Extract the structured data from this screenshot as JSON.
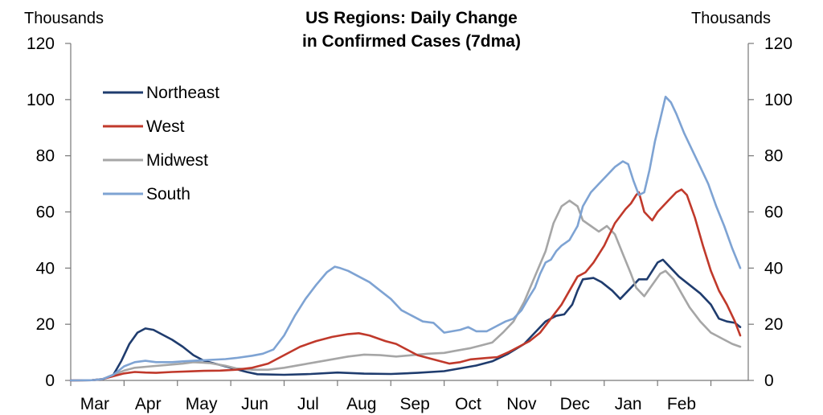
{
  "title_line1": "US Regions: Daily Change",
  "title_line2": "in Confirmed Cases (7dma)",
  "left_unit": "Thousands",
  "right_unit": "Thousands",
  "chart_data": {
    "type": "line",
    "title": "US Regions: Daily Change in Confirmed Cases (7dma)",
    "ylabel": "Thousands",
    "y2label": "Thousands",
    "ylim": [
      0,
      120
    ],
    "yticks": [
      0,
      20,
      40,
      60,
      80,
      100,
      120
    ],
    "xlim": [
      0,
      12.7
    ],
    "months": [
      "Mar",
      "Apr",
      "May",
      "Jun",
      "Jul",
      "Aug",
      "Sep",
      "Oct",
      "Nov",
      "Dec",
      "Jan",
      "Feb"
    ],
    "x_unit": "months since start of Mar 2020",
    "grid": false,
    "legend": "top-left",
    "series": [
      {
        "name": "Northeast",
        "color": "#1f3c6e",
        "points": [
          [
            0,
            0
          ],
          [
            0.4,
            0.1
          ],
          [
            0.6,
            0.4
          ],
          [
            0.8,
            2
          ],
          [
            0.95,
            7
          ],
          [
            1.1,
            13
          ],
          [
            1.25,
            17
          ],
          [
            1.4,
            18.5
          ],
          [
            1.55,
            18
          ],
          [
            1.7,
            16.5
          ],
          [
            1.9,
            14.5
          ],
          [
            2.1,
            12
          ],
          [
            2.3,
            9
          ],
          [
            2.5,
            7
          ],
          [
            2.7,
            6
          ],
          [
            2.9,
            5
          ],
          [
            3.1,
            4
          ],
          [
            3.3,
            3
          ],
          [
            3.5,
            2.2
          ],
          [
            4.0,
            2.0
          ],
          [
            4.5,
            2.3
          ],
          [
            5.0,
            2.8
          ],
          [
            5.5,
            2.4
          ],
          [
            6.0,
            2.3
          ],
          [
            6.5,
            2.7
          ],
          [
            7.0,
            3.3
          ],
          [
            7.3,
            4.3
          ],
          [
            7.6,
            5.3
          ],
          [
            7.9,
            6.8
          ],
          [
            8.2,
            9.5
          ],
          [
            8.5,
            13
          ],
          [
            8.7,
            17
          ],
          [
            8.9,
            21
          ],
          [
            9.1,
            23
          ],
          [
            9.25,
            23.5
          ],
          [
            9.4,
            27
          ],
          [
            9.5,
            32
          ],
          [
            9.6,
            36
          ],
          [
            9.8,
            36.5
          ],
          [
            9.95,
            35
          ],
          [
            10.15,
            32
          ],
          [
            10.3,
            29
          ],
          [
            10.5,
            33
          ],
          [
            10.65,
            36
          ],
          [
            10.8,
            36
          ],
          [
            11.0,
            42
          ],
          [
            11.1,
            43
          ],
          [
            11.2,
            41
          ],
          [
            11.4,
            37
          ],
          [
            11.6,
            34
          ],
          [
            11.8,
            31
          ],
          [
            12.0,
            27
          ],
          [
            12.15,
            22
          ],
          [
            12.3,
            21
          ],
          [
            12.45,
            20.5
          ],
          [
            12.55,
            19
          ]
        ]
      },
      {
        "name": "West",
        "color": "#c0392b",
        "points": [
          [
            0,
            0
          ],
          [
            0.4,
            0.1
          ],
          [
            0.6,
            0.5
          ],
          [
            0.8,
            1.5
          ],
          [
            1.0,
            2.5
          ],
          [
            1.2,
            3
          ],
          [
            1.4,
            2.8
          ],
          [
            1.6,
            2.7
          ],
          [
            1.9,
            3
          ],
          [
            2.2,
            3.2
          ],
          [
            2.5,
            3.4
          ],
          [
            2.8,
            3.5
          ],
          [
            3.1,
            3.8
          ],
          [
            3.4,
            4.5
          ],
          [
            3.7,
            6
          ],
          [
            4.0,
            9
          ],
          [
            4.3,
            12
          ],
          [
            4.6,
            14
          ],
          [
            4.9,
            15.5
          ],
          [
            5.2,
            16.5
          ],
          [
            5.4,
            16.8
          ],
          [
            5.6,
            16
          ],
          [
            5.9,
            14
          ],
          [
            6.1,
            13
          ],
          [
            6.3,
            11
          ],
          [
            6.5,
            9
          ],
          [
            6.7,
            8
          ],
          [
            6.9,
            7
          ],
          [
            7.1,
            6
          ],
          [
            7.3,
            6.5
          ],
          [
            7.5,
            7.5
          ],
          [
            7.8,
            8
          ],
          [
            8.0,
            8.3
          ],
          [
            8.2,
            10
          ],
          [
            8.4,
            12
          ],
          [
            8.6,
            14
          ],
          [
            8.8,
            17
          ],
          [
            9.0,
            22
          ],
          [
            9.2,
            27
          ],
          [
            9.35,
            32
          ],
          [
            9.5,
            37
          ],
          [
            9.65,
            38.5
          ],
          [
            9.8,
            42
          ],
          [
            10.0,
            48
          ],
          [
            10.2,
            56
          ],
          [
            10.4,
            61
          ],
          [
            10.5,
            63
          ],
          [
            10.6,
            66
          ],
          [
            10.65,
            67
          ],
          [
            10.75,
            60
          ],
          [
            10.9,
            57
          ],
          [
            11.0,
            60
          ],
          [
            11.1,
            62
          ],
          [
            11.2,
            64
          ],
          [
            11.35,
            67
          ],
          [
            11.45,
            68
          ],
          [
            11.55,
            66
          ],
          [
            11.7,
            58
          ],
          [
            11.85,
            48
          ],
          [
            12.0,
            39
          ],
          [
            12.15,
            32
          ],
          [
            12.3,
            27
          ],
          [
            12.45,
            21
          ],
          [
            12.55,
            16
          ]
        ]
      },
      {
        "name": "Midwest",
        "color": "#a6a6a6",
        "points": [
          [
            0,
            0
          ],
          [
            0.4,
            0.1
          ],
          [
            0.6,
            0.5
          ],
          [
            0.8,
            2
          ],
          [
            1.0,
            3.5
          ],
          [
            1.2,
            4.5
          ],
          [
            1.5,
            5
          ],
          [
            1.8,
            5.5
          ],
          [
            2.1,
            6
          ],
          [
            2.3,
            6.5
          ],
          [
            2.6,
            6.2
          ],
          [
            2.9,
            5.2
          ],
          [
            3.1,
            4.3
          ],
          [
            3.4,
            3.8
          ],
          [
            3.7,
            3.8
          ],
          [
            4.0,
            4.5
          ],
          [
            4.3,
            5.5
          ],
          [
            4.6,
            6.5
          ],
          [
            4.9,
            7.5
          ],
          [
            5.2,
            8.5
          ],
          [
            5.5,
            9.2
          ],
          [
            5.8,
            9.0
          ],
          [
            6.1,
            8.5
          ],
          [
            6.4,
            9
          ],
          [
            6.7,
            9.5
          ],
          [
            7.0,
            9.8
          ],
          [
            7.2,
            10.5
          ],
          [
            7.5,
            11.5
          ],
          [
            7.7,
            12.5
          ],
          [
            7.9,
            13.5
          ],
          [
            8.1,
            17
          ],
          [
            8.3,
            21
          ],
          [
            8.5,
            28
          ],
          [
            8.7,
            37
          ],
          [
            8.9,
            46
          ],
          [
            9.05,
            56
          ],
          [
            9.2,
            62
          ],
          [
            9.35,
            64
          ],
          [
            9.5,
            62
          ],
          [
            9.6,
            57
          ],
          [
            9.75,
            55
          ],
          [
            9.9,
            53
          ],
          [
            10.05,
            55
          ],
          [
            10.2,
            52
          ],
          [
            10.35,
            45
          ],
          [
            10.5,
            38
          ],
          [
            10.6,
            33
          ],
          [
            10.75,
            30
          ],
          [
            10.9,
            34
          ],
          [
            11.05,
            38
          ],
          [
            11.15,
            39
          ],
          [
            11.3,
            36
          ],
          [
            11.45,
            31
          ],
          [
            11.6,
            26
          ],
          [
            11.8,
            21
          ],
          [
            12.0,
            17
          ],
          [
            12.2,
            15
          ],
          [
            12.4,
            13
          ],
          [
            12.55,
            12
          ]
        ]
      },
      {
        "name": "South",
        "color": "#7ea3d3",
        "points": [
          [
            0,
            0
          ],
          [
            0.4,
            0.1
          ],
          [
            0.6,
            0.5
          ],
          [
            0.8,
            2
          ],
          [
            1.0,
            5
          ],
          [
            1.2,
            6.5
          ],
          [
            1.4,
            7
          ],
          [
            1.6,
            6.5
          ],
          [
            1.9,
            6.5
          ],
          [
            2.1,
            6.8
          ],
          [
            2.3,
            7
          ],
          [
            2.6,
            7.3
          ],
          [
            2.9,
            7.6
          ],
          [
            3.1,
            8
          ],
          [
            3.4,
            8.8
          ],
          [
            3.6,
            9.5
          ],
          [
            3.8,
            11
          ],
          [
            4.0,
            16
          ],
          [
            4.2,
            23
          ],
          [
            4.4,
            29
          ],
          [
            4.6,
            34
          ],
          [
            4.8,
            38.5
          ],
          [
            4.95,
            40.5
          ],
          [
            5.05,
            40
          ],
          [
            5.2,
            39
          ],
          [
            5.4,
            37
          ],
          [
            5.6,
            35
          ],
          [
            5.8,
            32
          ],
          [
            6.0,
            29
          ],
          [
            6.2,
            25
          ],
          [
            6.4,
            23
          ],
          [
            6.6,
            21
          ],
          [
            6.8,
            20.5
          ],
          [
            7.0,
            17
          ],
          [
            7.15,
            17.5
          ],
          [
            7.3,
            18
          ],
          [
            7.45,
            19
          ],
          [
            7.6,
            17.5
          ],
          [
            7.8,
            17.5
          ],
          [
            8.0,
            19.5
          ],
          [
            8.15,
            21
          ],
          [
            8.3,
            22
          ],
          [
            8.45,
            25
          ],
          [
            8.6,
            30
          ],
          [
            8.7,
            33
          ],
          [
            8.8,
            38
          ],
          [
            8.9,
            42
          ],
          [
            9.0,
            43
          ],
          [
            9.1,
            46
          ],
          [
            9.2,
            48
          ],
          [
            9.35,
            50
          ],
          [
            9.5,
            55
          ],
          [
            9.6,
            62
          ],
          [
            9.75,
            67
          ],
          [
            9.9,
            70
          ],
          [
            10.05,
            73
          ],
          [
            10.2,
            76
          ],
          [
            10.35,
            78
          ],
          [
            10.45,
            77
          ],
          [
            10.55,
            71
          ],
          [
            10.65,
            66
          ],
          [
            10.75,
            67
          ],
          [
            10.85,
            75
          ],
          [
            10.95,
            85
          ],
          [
            11.05,
            93
          ],
          [
            11.15,
            101
          ],
          [
            11.25,
            99
          ],
          [
            11.35,
            95
          ],
          [
            11.5,
            88
          ],
          [
            11.65,
            82
          ],
          [
            11.8,
            76
          ],
          [
            11.95,
            70
          ],
          [
            12.1,
            62
          ],
          [
            12.25,
            55
          ],
          [
            12.4,
            47
          ],
          [
            12.55,
            40
          ]
        ]
      }
    ]
  }
}
